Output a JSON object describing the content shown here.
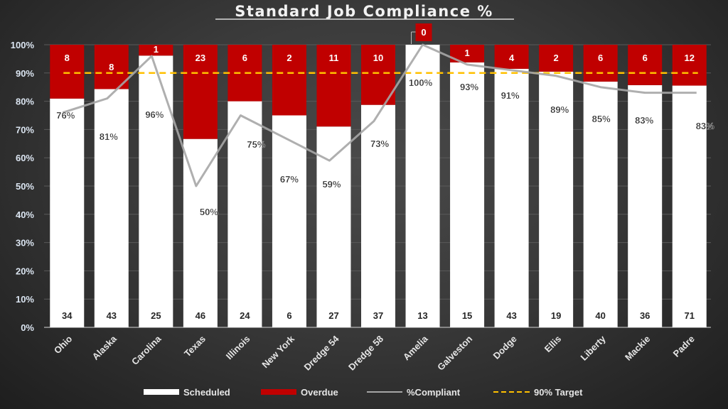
{
  "chart_data": {
    "type": "bar",
    "subtype": "100% stacked bar with line overlay",
    "title": "Standard Job Compliance %",
    "xlabel": "",
    "ylabel": "",
    "ylim": [
      0,
      100
    ],
    "yticks": [
      "0%",
      "10%",
      "20%",
      "30%",
      "40%",
      "50%",
      "60%",
      "70%",
      "80%",
      "90%",
      "100%"
    ],
    "grid": true,
    "legend_position": "bottom",
    "categories": [
      "Ohio",
      "Alaska",
      "Carolina",
      "Texas",
      "Illinois",
      "New York",
      "Dredge 54",
      "Dredge 58",
      "Amelia",
      "Galveston",
      "Dodge",
      "Ellis",
      "Liberty",
      "Mackie",
      "Padre"
    ],
    "series": [
      {
        "name": "Scheduled",
        "type": "bar",
        "color": "#ffffff",
        "values": [
          34,
          43,
          25,
          46,
          24,
          6,
          27,
          37,
          13,
          15,
          43,
          19,
          40,
          36,
          71
        ]
      },
      {
        "name": "Overdue",
        "type": "bar",
        "color": "#c00000",
        "values": [
          8,
          8,
          1,
          23,
          6,
          2,
          11,
          10,
          0,
          1,
          4,
          2,
          6,
          6,
          12
        ]
      },
      {
        "name": "%Compliant",
        "type": "line",
        "color": "#a6a6a6",
        "values": [
          76,
          81,
          96,
          50,
          75,
          67,
          59,
          73,
          100,
          93,
          91,
          89,
          85,
          83,
          83
        ],
        "labels": [
          "76%",
          "81%",
          "96%",
          "50%",
          "75%",
          "67%",
          "59%",
          "73%",
          "100%",
          "93%",
          "91%",
          "89%",
          "85%",
          "83%",
          "83%"
        ]
      },
      {
        "name": "90% Target",
        "type": "line",
        "style": "dashed",
        "color": "#ffc000",
        "value": 90
      }
    ]
  }
}
